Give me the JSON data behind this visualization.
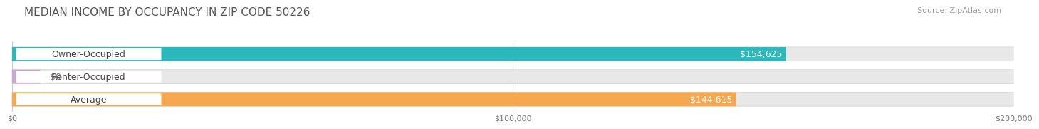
{
  "title": "MEDIAN INCOME BY OCCUPANCY IN ZIP CODE 50226",
  "source": "Source: ZipAtlas.com",
  "categories": [
    "Owner-Occupied",
    "Renter-Occupied",
    "Average"
  ],
  "values": [
    154625,
    0,
    144615
  ],
  "bar_colors": [
    "#2BB8BC",
    "#C4A8D0",
    "#F5A850"
  ],
  "bar_labels": [
    "$154,625",
    "$0",
    "$144,615"
  ],
  "xlim": [
    0,
    200000
  ],
  "xticks": [
    0,
    100000,
    200000
  ],
  "xtick_labels": [
    "$0",
    "$100,000",
    "$200,000"
  ],
  "background_color": "#ffffff",
  "bar_bg_color": "#e8e8e8",
  "bar_bg_color2": "#f2f2f2",
  "label_color_on_bar": "#ffffff",
  "label_color_off_bar": "#777777",
  "label_fontsize": 9,
  "title_fontsize": 11,
  "source_fontsize": 8,
  "category_fontsize": 9,
  "grid_color": "#cccccc"
}
